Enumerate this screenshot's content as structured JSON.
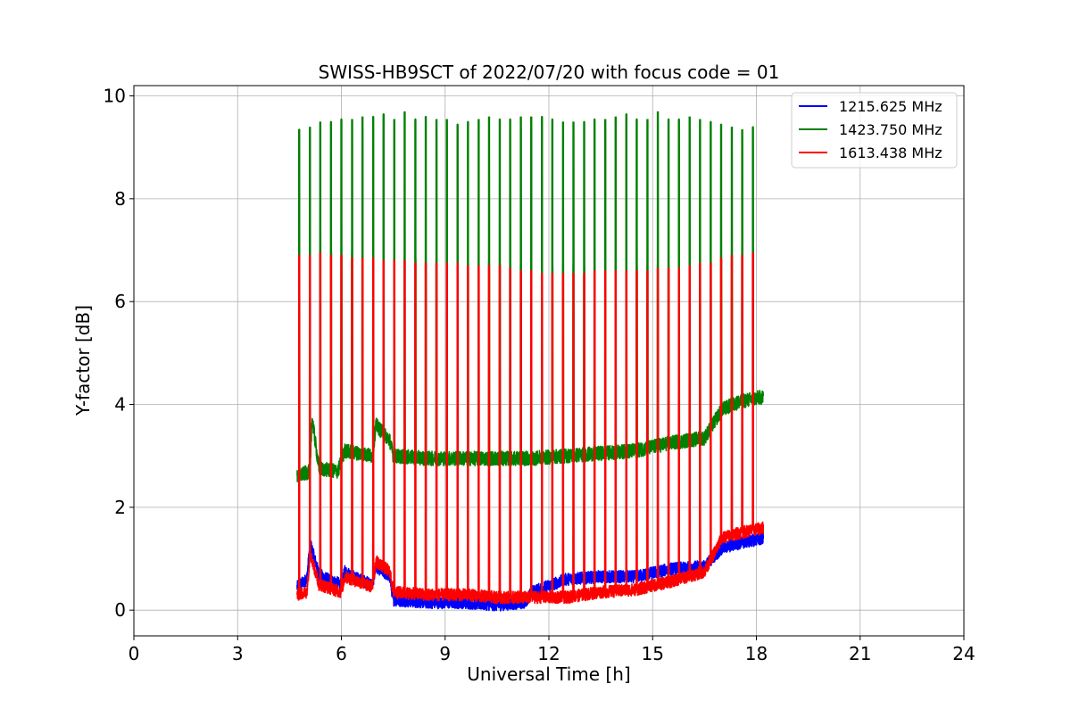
{
  "chart_data": {
    "type": "line",
    "title": "SWISS-HB9SCT of 2022/07/20 with focus code = 01",
    "xlabel": "Universal Time [h]",
    "ylabel": "Y-factor [dB]",
    "xlim": [
      0,
      24
    ],
    "ylim": [
      -0.5,
      10.2
    ],
    "xticks": [
      0,
      3,
      6,
      9,
      12,
      15,
      18,
      21,
      24
    ],
    "yticks": [
      0,
      2,
      4,
      6,
      8,
      10
    ],
    "grid": true,
    "legend_position": "top-right",
    "series": [
      {
        "name": "1215.625 MHz",
        "color": "#0000ff",
        "baseline": [
          [
            4.72,
            0.45
          ],
          [
            5.0,
            0.6
          ],
          [
            5.1,
            1.3
          ],
          [
            5.35,
            0.7
          ],
          [
            5.6,
            0.6
          ],
          [
            6.0,
            0.5
          ],
          [
            6.1,
            0.75
          ],
          [
            6.5,
            0.6
          ],
          [
            6.9,
            0.5
          ],
          [
            7.0,
            0.85
          ],
          [
            7.4,
            0.65
          ],
          [
            7.5,
            0.2
          ],
          [
            8.5,
            0.15
          ],
          [
            9.5,
            0.15
          ],
          [
            10.5,
            0.1
          ],
          [
            11.3,
            0.15
          ],
          [
            11.5,
            0.35
          ],
          [
            12.5,
            0.6
          ],
          [
            13.5,
            0.65
          ],
          [
            14.5,
            0.65
          ],
          [
            15.5,
            0.8
          ],
          [
            16.5,
            0.85
          ],
          [
            17.0,
            1.2
          ],
          [
            17.5,
            1.3
          ],
          [
            18.2,
            1.4
          ]
        ]
      },
      {
        "name": "1423.750 MHz",
        "color": "#008000",
        "baseline": [
          [
            4.72,
            2.6
          ],
          [
            5.1,
            2.7
          ],
          [
            5.15,
            3.75
          ],
          [
            5.35,
            2.75
          ],
          [
            5.9,
            2.7
          ],
          [
            6.1,
            3.1
          ],
          [
            6.9,
            3.0
          ],
          [
            7.0,
            3.6
          ],
          [
            7.4,
            3.3
          ],
          [
            7.5,
            3.0
          ],
          [
            8.5,
            2.95
          ],
          [
            9.5,
            2.95
          ],
          [
            10.5,
            2.95
          ],
          [
            11.5,
            2.95
          ],
          [
            12.5,
            3.0
          ],
          [
            13.5,
            3.05
          ],
          [
            14.5,
            3.1
          ],
          [
            15.5,
            3.25
          ],
          [
            16.5,
            3.35
          ],
          [
            17.0,
            3.9
          ],
          [
            17.5,
            4.05
          ],
          [
            18.2,
            4.15
          ]
        ],
        "spike_peaks": [
          9.35,
          9.4,
          9.5,
          9.5,
          9.55,
          9.55,
          9.6,
          9.6,
          9.65,
          9.55,
          9.7,
          9.55,
          9.6,
          9.55,
          9.55,
          9.45,
          9.5,
          9.55,
          9.6,
          9.55,
          9.55,
          9.6,
          9.6,
          9.6,
          9.55,
          9.5,
          9.5,
          9.5,
          9.55,
          9.55,
          9.6,
          9.65,
          9.55,
          9.55,
          9.7,
          9.55,
          9.55,
          9.6,
          9.55,
          9.5,
          9.45,
          9.4,
          9.35,
          9.4
        ],
        "spike_mids": [
          7.0,
          6.95,
          6.9,
          6.95,
          6.9,
          6.9,
          6.85,
          6.8,
          6.85,
          6.8,
          6.8,
          6.8,
          6.75,
          6.75,
          6.7,
          6.7,
          6.7,
          6.7,
          6.7,
          6.7,
          6.7,
          6.7,
          6.7,
          6.65,
          6.65,
          6.65,
          6.65,
          6.65,
          6.65,
          6.65,
          6.65,
          6.65,
          6.65,
          6.65,
          6.65,
          6.65,
          6.65,
          6.7,
          6.7,
          6.75,
          6.8,
          6.85,
          6.9,
          6.95
        ]
      },
      {
        "name": "1613.438 MHz",
        "color": "#ff0000",
        "baseline": [
          [
            4.72,
            0.3
          ],
          [
            5.0,
            0.35
          ],
          [
            5.1,
            1.1
          ],
          [
            5.35,
            0.5
          ],
          [
            6.0,
            0.35
          ],
          [
            6.1,
            0.65
          ],
          [
            6.9,
            0.45
          ],
          [
            7.0,
            0.95
          ],
          [
            7.4,
            0.75
          ],
          [
            7.5,
            0.35
          ],
          [
            8.5,
            0.3
          ],
          [
            9.5,
            0.3
          ],
          [
            10.5,
            0.25
          ],
          [
            11.5,
            0.25
          ],
          [
            12.5,
            0.25
          ],
          [
            13.5,
            0.35
          ],
          [
            14.5,
            0.4
          ],
          [
            15.5,
            0.55
          ],
          [
            16.5,
            0.75
          ],
          [
            17.0,
            1.4
          ],
          [
            17.5,
            1.5
          ],
          [
            18.2,
            1.6
          ]
        ],
        "spike_peaks": [
          6.9,
          6.9,
          6.95,
          6.9,
          6.9,
          6.85,
          6.85,
          6.85,
          6.8,
          6.8,
          6.8,
          6.75,
          6.75,
          6.75,
          6.75,
          6.75,
          6.7,
          6.7,
          6.7,
          6.7,
          6.65,
          6.6,
          6.6,
          6.55,
          6.55,
          6.55,
          6.55,
          6.55,
          6.6,
          6.6,
          6.6,
          6.6,
          6.6,
          6.6,
          6.65,
          6.65,
          6.65,
          6.7,
          6.75,
          6.75,
          6.85,
          6.9,
          6.9,
          6.95
        ]
      }
    ],
    "spike_times": [
      4.78,
      5.09,
      5.39,
      5.7,
      6.0,
      6.31,
      6.61,
      6.92,
      7.22,
      7.53,
      7.83,
      8.14,
      8.44,
      8.75,
      9.05,
      9.36,
      9.66,
      9.97,
      10.27,
      10.58,
      10.88,
      11.19,
      11.49,
      11.8,
      12.1,
      12.41,
      12.71,
      13.02,
      13.32,
      13.63,
      13.93,
      14.24,
      14.54,
      14.85,
      15.15,
      15.46,
      15.76,
      16.07,
      16.37,
      16.68,
      16.98,
      17.29,
      17.59,
      17.9
    ]
  }
}
